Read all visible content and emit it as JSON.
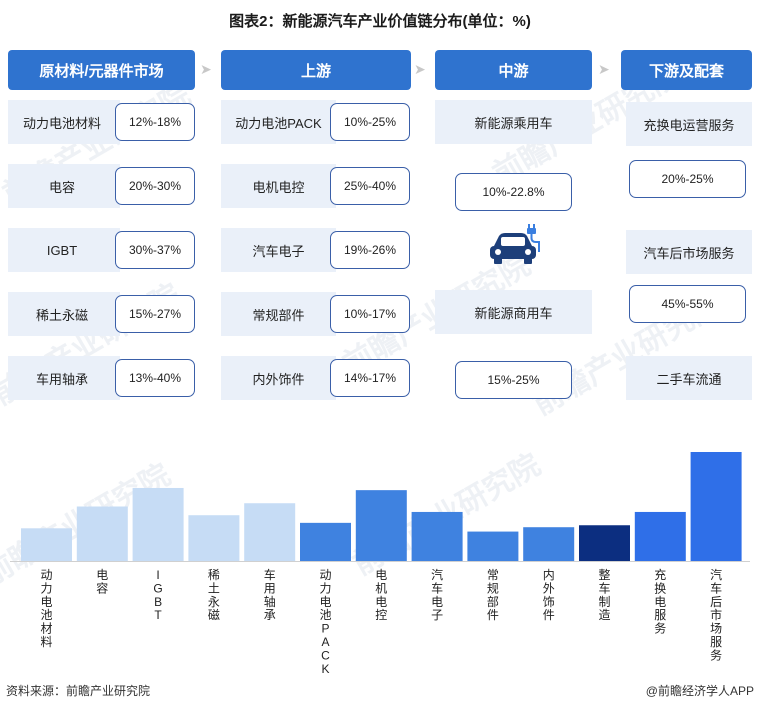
{
  "title": "图表2：新能源汽车产业价值链分布(单位：%)",
  "columns": [
    {
      "label": "原材料/元器件市场"
    },
    {
      "label": "上游"
    },
    {
      "label": "中游"
    },
    {
      "label": "下游及配套"
    }
  ],
  "raw_materials": [
    {
      "name": "动力电池材料",
      "range": "12%-18%"
    },
    {
      "name": "电容",
      "range": "20%-30%"
    },
    {
      "name": "IGBT",
      "range": "30%-37%"
    },
    {
      "name": "稀土永磁",
      "range": "15%-27%"
    },
    {
      "name": "车用轴承",
      "range": "13%-40%"
    }
  ],
  "upstream": [
    {
      "name": "动力电池PACK",
      "range": "10%-25%"
    },
    {
      "name": "电机电控",
      "range": "25%-40%"
    },
    {
      "name": "汽车电子",
      "range": "19%-26%"
    },
    {
      "name": "常规部件",
      "range": "10%-17%"
    },
    {
      "name": "内外饰件",
      "range": "14%-17%"
    }
  ],
  "midstream": {
    "passenger": "新能源乘用车",
    "passenger_range": "10%-22.8%",
    "commercial": "新能源商用车",
    "commercial_range": "15%-25%",
    "icon": "ev-charging-car-icon"
  },
  "downstream": [
    {
      "name": "充换电运营服务",
      "range": "20%-25%"
    },
    {
      "name": "汽车后市场服务",
      "range": "45%-55%"
    },
    {
      "name": "二手车流通",
      "range": ""
    }
  ],
  "chart_data": {
    "type": "bar",
    "categories": [
      "动力电池材料",
      "电容",
      "IGBT",
      "稀土永磁",
      "车用轴承",
      "动力电池PACK",
      "电机电控",
      "汽车电子",
      "常规部件",
      "内外饰件",
      "整车制造",
      "充换电服务",
      "汽车后市场服务"
    ],
    "values": [
      15,
      25,
      33.5,
      21,
      26.5,
      17.5,
      32.5,
      22.5,
      13.5,
      15.5,
      16.4,
      22.5,
      50
    ],
    "colors": [
      "#c6dcf5",
      "#c6dcf5",
      "#c6dcf5",
      "#c6dcf5",
      "#c6dcf5",
      "#3f82e0",
      "#3f82e0",
      "#3f82e0",
      "#3f82e0",
      "#3f82e0",
      "#0c2e80",
      "#2f6fe8",
      "#2f6fe8"
    ],
    "ylim": [
      0,
      50
    ]
  },
  "watermark": "前瞻产业研究院",
  "source": "资料来源：前瞻产业研究院",
  "brand": "@前瞻经济学人APP"
}
